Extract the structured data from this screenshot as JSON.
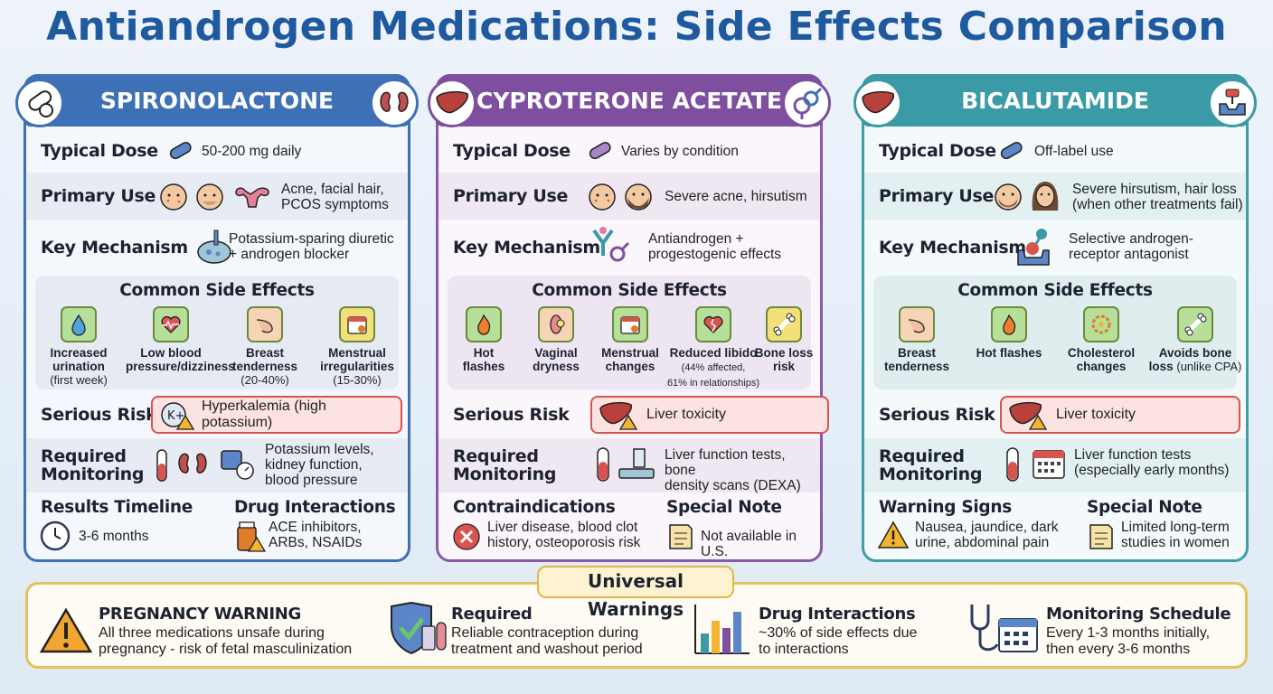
{
  "page_title": "Antiandrogen Medications: Side Effects Comparison",
  "labels": {
    "typical_dose": "Typical Dose",
    "primary_use": "Primary Use",
    "key_mechanism": "Key Mechanism",
    "common_side_effects": "Common Side Effects",
    "serious_risk": "Serious Risk",
    "required": "Required",
    "monitoring": "Monitoring"
  },
  "cards": [
    {
      "name": "SPIRONOLACTONE",
      "typical_dose": "50-200 mg daily",
      "primary_use": [
        "Acne, facial hair,",
        "PCOS symptoms"
      ],
      "key_mechanism": [
        "Potassium-sparing diuretic",
        "+ androgen blocker"
      ],
      "side_effects": [
        {
          "label": [
            "Increased",
            "urination"
          ],
          "sub": "(first week)"
        },
        {
          "label": [
            "Low blood",
            "pressure/dizziness"
          ],
          "sub": ""
        },
        {
          "label": [
            "Breast",
            "tenderness"
          ],
          "sub": "(20-40%)"
        },
        {
          "label": [
            "Menstrual",
            "irregularities"
          ],
          "sub": "(15-30%)"
        }
      ],
      "serious_risk": "Hyperkalemia (high potassium)",
      "monitoring": [
        "Potassium levels,",
        "kidney function,",
        "blood pressure"
      ],
      "left_section": {
        "heading": "Results Timeline",
        "text": [
          "3-6 months"
        ]
      },
      "right_section": {
        "heading": "Drug Interactions",
        "text": [
          "ACE inhibitors,",
          "ARBs, NSAIDs"
        ]
      },
      "badge_icons": [
        "pill-icon",
        "kidney-icon"
      ]
    },
    {
      "name": "CYPROTERONE ACETATE",
      "typical_dose": "Varies by condition",
      "primary_use": [
        "Severe acne, hirsutism"
      ],
      "key_mechanism": [
        "Antiandrogen +",
        "progestogenic effects"
      ],
      "side_effects": [
        {
          "label": [
            "Hot",
            "flashes"
          ],
          "sub": ""
        },
        {
          "label": [
            "Vaginal",
            "dryness"
          ],
          "sub": ""
        },
        {
          "label": [
            "Menstrual",
            "changes"
          ],
          "sub": ""
        },
        {
          "label": [
            "Reduced libido"
          ],
          "sub": "(44% affected,",
          "sub2": "61% in relationships)"
        },
        {
          "label": [
            "Bone loss",
            "risk"
          ],
          "sub": ""
        }
      ],
      "serious_risk": "Liver toxicity",
      "monitoring": [
        "Liver function tests, bone",
        "density scans (DEXA)"
      ],
      "left_section": {
        "heading": "Contraindications",
        "text": [
          "Liver disease, blood clot",
          "history, osteoporosis risk"
        ]
      },
      "right_section": {
        "heading": "Special Note",
        "text": [
          "Not available in U.S."
        ]
      },
      "badge_icons": [
        "liver-icon",
        "gender-symbol-icon"
      ]
    },
    {
      "name": "BICALUTAMIDE",
      "typical_dose": "Off-label use",
      "primary_use": [
        "Severe hirsutism, hair loss",
        "(when other treatments fail)"
      ],
      "key_mechanism": [
        "Selective androgen-",
        "receptor antagonist"
      ],
      "side_effects": [
        {
          "label": [
            "Breast",
            "tenderness"
          ],
          "sub": ""
        },
        {
          "label": [
            "Hot flashes"
          ],
          "sub": ""
        },
        {
          "label": [
            "Cholesterol",
            "changes"
          ],
          "sub": ""
        },
        {
          "label": [
            "Avoids bone",
            "loss"
          ],
          "sub": "(unlike CPA)"
        }
      ],
      "serious_risk": "Liver toxicity",
      "monitoring": [
        "Liver function tests",
        "(especially early months)"
      ],
      "left_section": {
        "heading": "Warning Signs",
        "text": [
          "Nausea, jaundice, dark",
          "urine, abdominal pain"
        ]
      },
      "right_section": {
        "heading": "Special Note",
        "text": [
          "Limited long-term",
          "studies in women"
        ]
      },
      "badge_icons": [
        "liver-icon",
        "receptor-icon"
      ]
    }
  ],
  "universal": {
    "title": "Universal Warnings",
    "items": [
      {
        "heading": "PREGNANCY WARNING",
        "text": [
          "All three medications unsafe during",
          "pregnancy - risk of fetal masculinization"
        ],
        "icon": "warning-triangle-icon"
      },
      {
        "heading": "Required",
        "text": [
          "Reliable contraception during",
          "treatment and washout period"
        ],
        "icon": "shield-check-icon"
      },
      {
        "heading": "Drug Interactions",
        "text": [
          "~30% of side effects due",
          "to interactions"
        ],
        "icon": "bar-chart-icon"
      },
      {
        "heading": "Monitoring Schedule",
        "text": [
          "Every 1-3 months initially,",
          "then every 3-6 months"
        ],
        "icon": "stethoscope-calendar-icon"
      }
    ]
  },
  "colors": {
    "spironolactone": "#3e70b6",
    "cyproterone": "#7d4f9e",
    "bicalutamide": "#3a9aa5",
    "risk_red": "#d9534f",
    "title_blue": "#1f5a9e"
  }
}
